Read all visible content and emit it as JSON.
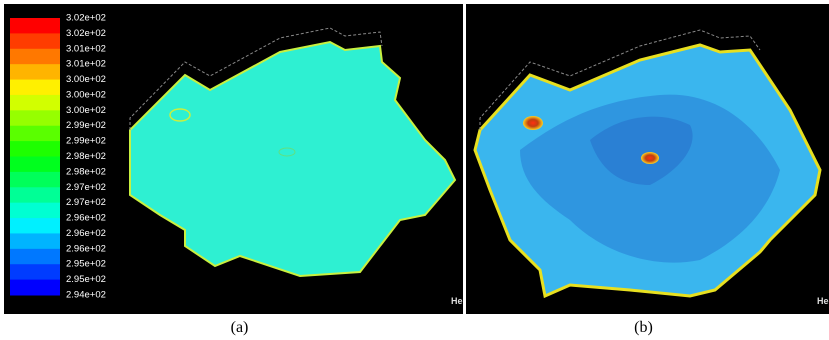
{
  "figure": {
    "colorbar_labels": [
      "3.02e+02",
      "3.02e+02",
      "3.01e+02",
      "3.01e+02",
      "3.00e+02",
      "3.00e+02",
      "3.00e+02",
      "2.99e+02",
      "2.99e+02",
      "2.98e+02",
      "2.98e+02",
      "2.97e+02",
      "2.97e+02",
      "2.96e+02",
      "2.96e+02",
      "2.96e+02",
      "2.95e+02",
      "2.95e+02",
      "2.94e+02"
    ],
    "panels": [
      {
        "caption": "(a)",
        "corner_text": "He"
      },
      {
        "caption": "(b)",
        "corner_text": "He"
      }
    ]
  }
}
